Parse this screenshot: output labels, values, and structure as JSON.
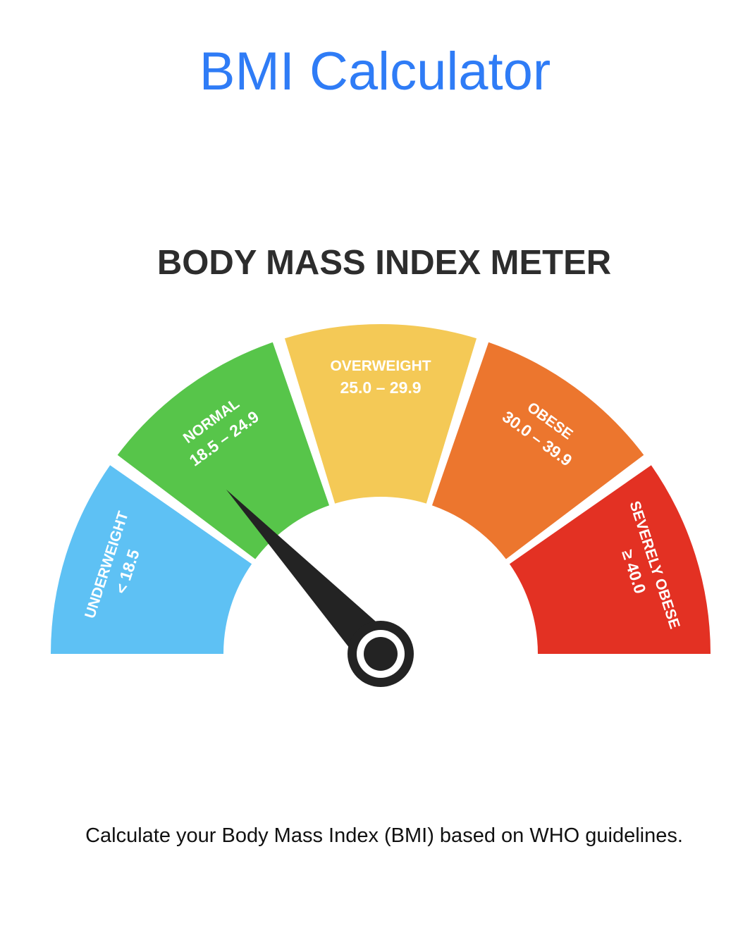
{
  "header": {
    "title": "BMI Calculator",
    "title_color": "#2f7cf6"
  },
  "meter": {
    "heading": "BODY MASS INDEX METER",
    "zones": [
      {
        "label": "UNDERWEIGHT",
        "range": "< 18.5",
        "color": "#5ec1f4"
      },
      {
        "label": "NORMAL",
        "range": "18.5 – 24.9",
        "color": "#57c54a"
      },
      {
        "label": "OVERWEIGHT",
        "range": "25.0 – 29.9",
        "color": "#f4c956"
      },
      {
        "label": "OBESE",
        "range": "30.0 – 39.9",
        "color": "#ec762e"
      },
      {
        "label": "SEVERELY OBESE",
        "range": "≥ 40.0",
        "color": "#e33123"
      }
    ],
    "needle_color": "#232323",
    "needle_zone": "NORMAL"
  },
  "description": "Calculate your Body Mass Index (BMI) based on WHO guidelines."
}
